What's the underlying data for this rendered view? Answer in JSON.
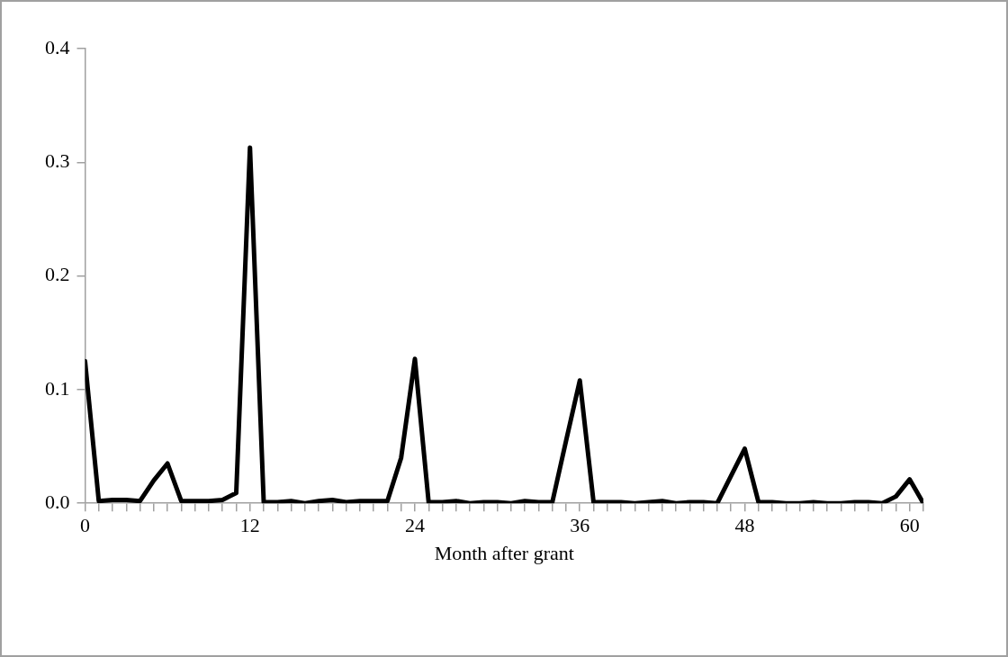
{
  "chart_data": {
    "type": "line",
    "xlabel": "Month after grant",
    "x": [
      0,
      1,
      2,
      3,
      4,
      5,
      6,
      7,
      8,
      9,
      10,
      11,
      12,
      13,
      14,
      15,
      16,
      17,
      18,
      19,
      20,
      21,
      22,
      23,
      24,
      25,
      26,
      27,
      28,
      29,
      30,
      31,
      32,
      33,
      34,
      35,
      36,
      37,
      38,
      39,
      40,
      41,
      42,
      43,
      44,
      45,
      46,
      47,
      48,
      49,
      50,
      51,
      52,
      53,
      54,
      55,
      56,
      57,
      58,
      59,
      60,
      61
    ],
    "series": [
      {
        "color": "#000000",
        "values": [
          0.125,
          0.002,
          0.003,
          0.003,
          0.002,
          0.02,
          0.035,
          0.002,
          0.002,
          0.002,
          0.003,
          0.009,
          0.313,
          0.001,
          0.001,
          0.002,
          0.0,
          0.002,
          0.003,
          0.001,
          0.002,
          0.002,
          0.002,
          0.04,
          0.127,
          0.001,
          0.001,
          0.002,
          0.0,
          0.001,
          0.001,
          0.0,
          0.002,
          0.001,
          0.001,
          0.055,
          0.108,
          0.001,
          0.001,
          0.001,
          0.0,
          0.001,
          0.002,
          0.0,
          0.001,
          0.001,
          0.0,
          0.024,
          0.048,
          0.001,
          0.001,
          0.0,
          0.0,
          0.001,
          0.0,
          0.0,
          0.001,
          0.001,
          0.0,
          0.006,
          0.021,
          0.0
        ]
      }
    ],
    "xlim": [
      0,
      61
    ],
    "xticks": [
      0,
      {
        "value": 1,
        "label": null
      },
      {
        "value": 2,
        "label": null
      },
      {
        "value": 3,
        "label": null
      },
      {
        "value": 4,
        "label": null
      },
      {
        "value": 5,
        "label": null
      },
      {
        "value": 6,
        "label": null
      },
      {
        "value": 7,
        "label": null
      },
      {
        "value": 8,
        "label": null
      },
      {
        "value": 9,
        "label": null
      },
      {
        "value": 10,
        "label": null
      },
      {
        "value": 11,
        "label": null
      },
      12,
      {
        "value": 13,
        "label": null
      },
      {
        "value": 14,
        "label": null
      },
      {
        "value": 15,
        "label": null
      },
      {
        "value": 16,
        "label": null
      },
      {
        "value": 17,
        "label": null
      },
      {
        "value": 18,
        "label": null
      },
      {
        "value": 19,
        "label": null
      },
      {
        "value": 20,
        "label": null
      },
      {
        "value": 21,
        "label": null
      },
      {
        "value": 22,
        "label": null
      },
      {
        "value": 23,
        "label": null
      },
      24,
      {
        "value": 25,
        "label": null
      },
      {
        "value": 26,
        "label": null
      },
      {
        "value": 27,
        "label": null
      },
      {
        "value": 28,
        "label": null
      },
      {
        "value": 29,
        "label": null
      },
      {
        "value": 30,
        "label": null
      },
      {
        "value": 31,
        "label": null
      },
      {
        "value": 32,
        "label": null
      },
      {
        "value": 33,
        "label": null
      },
      {
        "value": 34,
        "label": null
      },
      {
        "value": 35,
        "label": null
      },
      36,
      {
        "value": 37,
        "label": null
      },
      {
        "value": 38,
        "label": null
      },
      {
        "value": 39,
        "label": null
      },
      {
        "value": 40,
        "label": null
      },
      {
        "value": 41,
        "label": null
      },
      {
        "value": 42,
        "label": null
      },
      {
        "value": 43,
        "label": null
      },
      {
        "value": 44,
        "label": null
      },
      {
        "value": 45,
        "label": null
      },
      {
        "value": 46,
        "label": null
      },
      {
        "value": 47,
        "label": null
      },
      48,
      {
        "value": 49,
        "label": null
      },
      {
        "value": 50,
        "label": null
      },
      {
        "value": 51,
        "label": null
      },
      {
        "value": 52,
        "label": null
      },
      {
        "value": 53,
        "label": null
      },
      {
        "value": 54,
        "label": null
      },
      {
        "value": 55,
        "label": null
      },
      {
        "value": 56,
        "label": null
      },
      {
        "value": 57,
        "label": null
      },
      {
        "value": 58,
        "label": null
      },
      {
        "value": 59,
        "label": null
      },
      60,
      {
        "value": 61,
        "label": null
      }
    ],
    "ylim": [
      0,
      0.4
    ],
    "yticks": [
      {
        "value": 0,
        "label": "0.0"
      },
      {
        "value": 0.1,
        "label": "0.1"
      },
      {
        "value": 0.2,
        "label": "0.2"
      },
      {
        "value": 0.3,
        "label": "0.3"
      },
      {
        "value": 0.4,
        "label": "0.4"
      }
    ],
    "grid": false,
    "legend": false,
    "marker": "none",
    "line_style": "solid"
  }
}
